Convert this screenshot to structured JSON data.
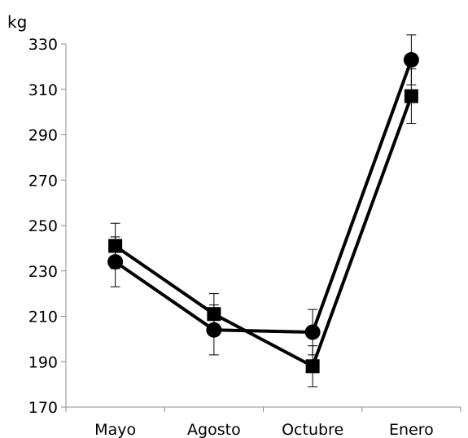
{
  "chart_data": {
    "type": "line",
    "title": "",
    "xlabel": "",
    "ylabel": "kg",
    "categories": [
      "Mayo",
      "Agosto",
      "Octubre",
      "Enero"
    ],
    "ylim": [
      170,
      330
    ],
    "yticks": [
      170,
      190,
      210,
      230,
      250,
      270,
      290,
      310,
      330
    ],
    "grid": false,
    "legend": "none",
    "series": [
      {
        "marker": "square",
        "color": "#000000",
        "values": [
          241,
          211,
          188,
          307
        ],
        "error": [
          10,
          9,
          9,
          12
        ]
      },
      {
        "marker": "circle",
        "color": "#000000",
        "values": [
          234,
          204,
          203,
          323
        ],
        "error": [
          11,
          11,
          10,
          11
        ]
      }
    ]
  }
}
